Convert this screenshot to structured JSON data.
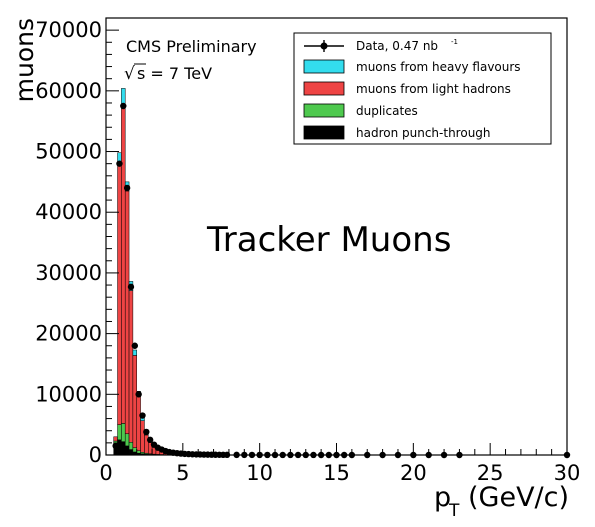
{
  "chart_data": {
    "type": "bar",
    "ylabel": "muons",
    "xlabel_main": "p",
    "xlabel_sub": "T",
    "xlabel_unit": "(GeV/c)",
    "xlim": [
      0,
      30
    ],
    "ylim": [
      0,
      72000
    ],
    "xticks": [
      0,
      5,
      10,
      15,
      20,
      25,
      30
    ],
    "xtick_labels": [
      "0",
      "5",
      "10",
      "15",
      "20",
      "25",
      "30"
    ],
    "yticks": [
      0,
      10000,
      20000,
      30000,
      40000,
      50000,
      60000,
      70000
    ],
    "ytick_labels": [
      "0",
      "10000",
      "20000",
      "30000",
      "40000",
      "50000",
      "60000",
      "70000"
    ],
    "experiment": "CMS Preliminary",
    "energy_label": "s = 7 TeV",
    "energy_sqrt": "√",
    "annotation": "Tracker Muons",
    "bin_width": 0.25,
    "bins_x": [
      0.5,
      0.75,
      1.0,
      1.25,
      1.5,
      1.75,
      2.0,
      2.25,
      2.5,
      2.75,
      3.0,
      3.25,
      3.5,
      3.75,
      4.0,
      4.25,
      4.5,
      4.75,
      5.0,
      5.25,
      5.5,
      5.75,
      6.0,
      6.25,
      6.5,
      6.75,
      7.0,
      7.25,
      7.5,
      7.75,
      8.0
    ],
    "series": [
      {
        "name": "hadron punch-through",
        "color": "#000000",
        "values": [
          2000,
          2500,
          2200,
          1500,
          900,
          500,
          300,
          200,
          150,
          100,
          80,
          60,
          50,
          40,
          30,
          20,
          15,
          10,
          10,
          8,
          6,
          5,
          4,
          3,
          3,
          2,
          2,
          2,
          1,
          1,
          1
        ]
      },
      {
        "name": "duplicates",
        "color": "#4ec94e",
        "values": [
          300,
          2500,
          3000,
          2000,
          1200,
          700,
          400,
          250,
          150,
          100,
          60,
          40,
          30,
          20,
          15,
          10,
          8,
          6,
          5,
          4,
          3,
          2,
          2,
          2,
          1,
          1,
          1,
          1,
          1,
          1,
          1
        ]
      },
      {
        "name": "muons from light hadrons",
        "color": "#ee4444",
        "values": [
          700,
          43000,
          52500,
          40000,
          25000,
          15200,
          9000,
          5200,
          3000,
          1900,
          1200,
          800,
          550,
          380,
          270,
          200,
          150,
          110,
          85,
          65,
          50,
          40,
          32,
          25,
          20,
          16,
          13,
          10,
          8,
          6,
          5
        ]
      },
      {
        "name": "muons from heavy flavours",
        "color": "#33ddee",
        "values": [
          0,
          1800,
          2700,
          1500,
          1500,
          900,
          800,
          650,
          500,
          400,
          330,
          270,
          220,
          180,
          145,
          120,
          100,
          85,
          70,
          60,
          50,
          43,
          37,
          32,
          28,
          24,
          21,
          18,
          16,
          14,
          12
        ]
      }
    ],
    "data_series": {
      "name": "Data, 0.47 nb",
      "name_sup": "-1",
      "x": [
        0.625,
        0.875,
        1.125,
        1.375,
        1.625,
        1.875,
        2.125,
        2.375,
        2.625,
        2.875,
        3.125,
        3.375,
        3.625,
        3.875,
        4.125,
        4.375,
        4.625,
        4.875,
        5.125,
        5.375,
        5.625,
        5.875,
        6.125,
        6.375,
        6.625,
        6.875,
        7.125,
        7.375,
        7.625,
        7.875,
        8.5,
        9.0,
        9.5,
        10.0,
        10.5,
        11.0,
        11.5,
        12.0,
        12.5,
        13.0,
        13.5,
        14.0,
        14.5,
        15.0,
        15.5,
        16.0,
        17.0,
        18.0,
        19.0,
        20.0,
        21.0,
        22.0,
        23.0,
        30.0
      ],
      "y": [
        1500,
        48000,
        57500,
        44000,
        27700,
        18000,
        10000,
        6500,
        3800,
        2500,
        1700,
        1200,
        900,
        650,
        480,
        380,
        300,
        230,
        180,
        150,
        120,
        100,
        85,
        70,
        60,
        50,
        42,
        36,
        30,
        26,
        20,
        16,
        13,
        11,
        9,
        7,
        6,
        5,
        4,
        3,
        3,
        2,
        2,
        2,
        1,
        1,
        1,
        1,
        1,
        1,
        1,
        1,
        1,
        1
      ]
    }
  }
}
